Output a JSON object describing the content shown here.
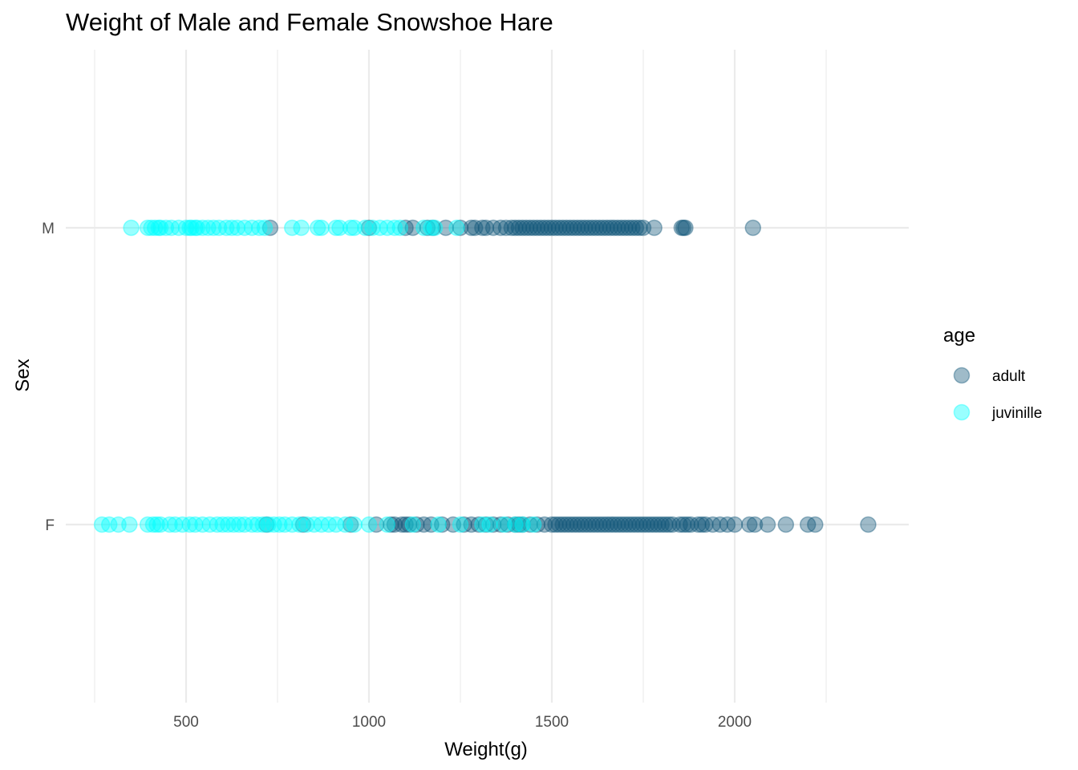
{
  "chart_data": {
    "type": "scatter",
    "title": "Weight of Male and Female Snowshoe Hare",
    "xlabel": "Weight(g)",
    "ylabel": "Sex",
    "xlim": [
      220,
      2440
    ],
    "x_ticks": [
      500,
      1000,
      1500,
      2000
    ],
    "x_tick_labels": [
      "500",
      "1000",
      "1500",
      "2000"
    ],
    "categories": [
      "F",
      "M"
    ],
    "grid": true,
    "legend": {
      "title": "age",
      "position": "right"
    },
    "series": [
      {
        "name": "adult",
        "color": "#0e5479",
        "opacity": 0.4,
        "points": {
          "M": [
            730,
            1000,
            1100,
            1120,
            1160,
            1175,
            1210,
            1250,
            1280,
            1290,
            1310,
            1320,
            1340,
            1360,
            1375,
            1390,
            1400,
            1410,
            1420,
            1430,
            1440,
            1450,
            1460,
            1470,
            1480,
            1490,
            1500,
            1510,
            1520,
            1530,
            1540,
            1550,
            1560,
            1570,
            1580,
            1590,
            1600,
            1610,
            1620,
            1630,
            1640,
            1650,
            1660,
            1670,
            1680,
            1690,
            1700,
            1710,
            1720,
            1730,
            1740,
            1750,
            1780,
            1855,
            1860,
            1865,
            2050
          ],
          "F": [
            720,
            820,
            950,
            1020,
            1060,
            1070,
            1090,
            1100,
            1110,
            1130,
            1150,
            1170,
            1200,
            1230,
            1260,
            1280,
            1300,
            1320,
            1340,
            1360,
            1380,
            1400,
            1410,
            1420,
            1440,
            1460,
            1480,
            1500,
            1510,
            1520,
            1530,
            1540,
            1550,
            1560,
            1570,
            1580,
            1590,
            1600,
            1610,
            1620,
            1630,
            1640,
            1650,
            1660,
            1670,
            1680,
            1690,
            1700,
            1710,
            1720,
            1730,
            1740,
            1750,
            1760,
            1770,
            1780,
            1790,
            1800,
            1810,
            1820,
            1830,
            1850,
            1860,
            1870,
            1880,
            1900,
            1910,
            1920,
            1940,
            1960,
            1980,
            2000,
            2040,
            2055,
            2090,
            2140,
            2200,
            2220,
            2365
          ]
        }
      },
      {
        "name": "juvinille",
        "color": "#00ffff",
        "opacity": 0.4,
        "points": {
          "M": [
            350,
            395,
            405,
            415,
            425,
            430,
            445,
            460,
            480,
            500,
            510,
            515,
            525,
            530,
            545,
            560,
            575,
            590,
            610,
            625,
            640,
            660,
            680,
            700,
            715,
            790,
            815,
            860,
            870,
            910,
            920,
            950,
            960,
            990,
            1010,
            1030,
            1050,
            1070,
            1085,
            1150,
            1170,
            1180,
            1240
          ],
          "F": [
            270,
            290,
            315,
            345,
            395,
            410,
            420,
            430,
            455,
            470,
            490,
            510,
            525,
            545,
            565,
            585,
            600,
            615,
            630,
            645,
            660,
            680,
            695,
            710,
            725,
            740,
            755,
            770,
            790,
            810,
            830,
            850,
            870,
            890,
            910,
            935,
            960,
            1000,
            1050,
            1120,
            1190,
            1250,
            1310,
            1330,
            1370,
            1400,
            1420,
            1450
          ]
        }
      }
    ]
  }
}
